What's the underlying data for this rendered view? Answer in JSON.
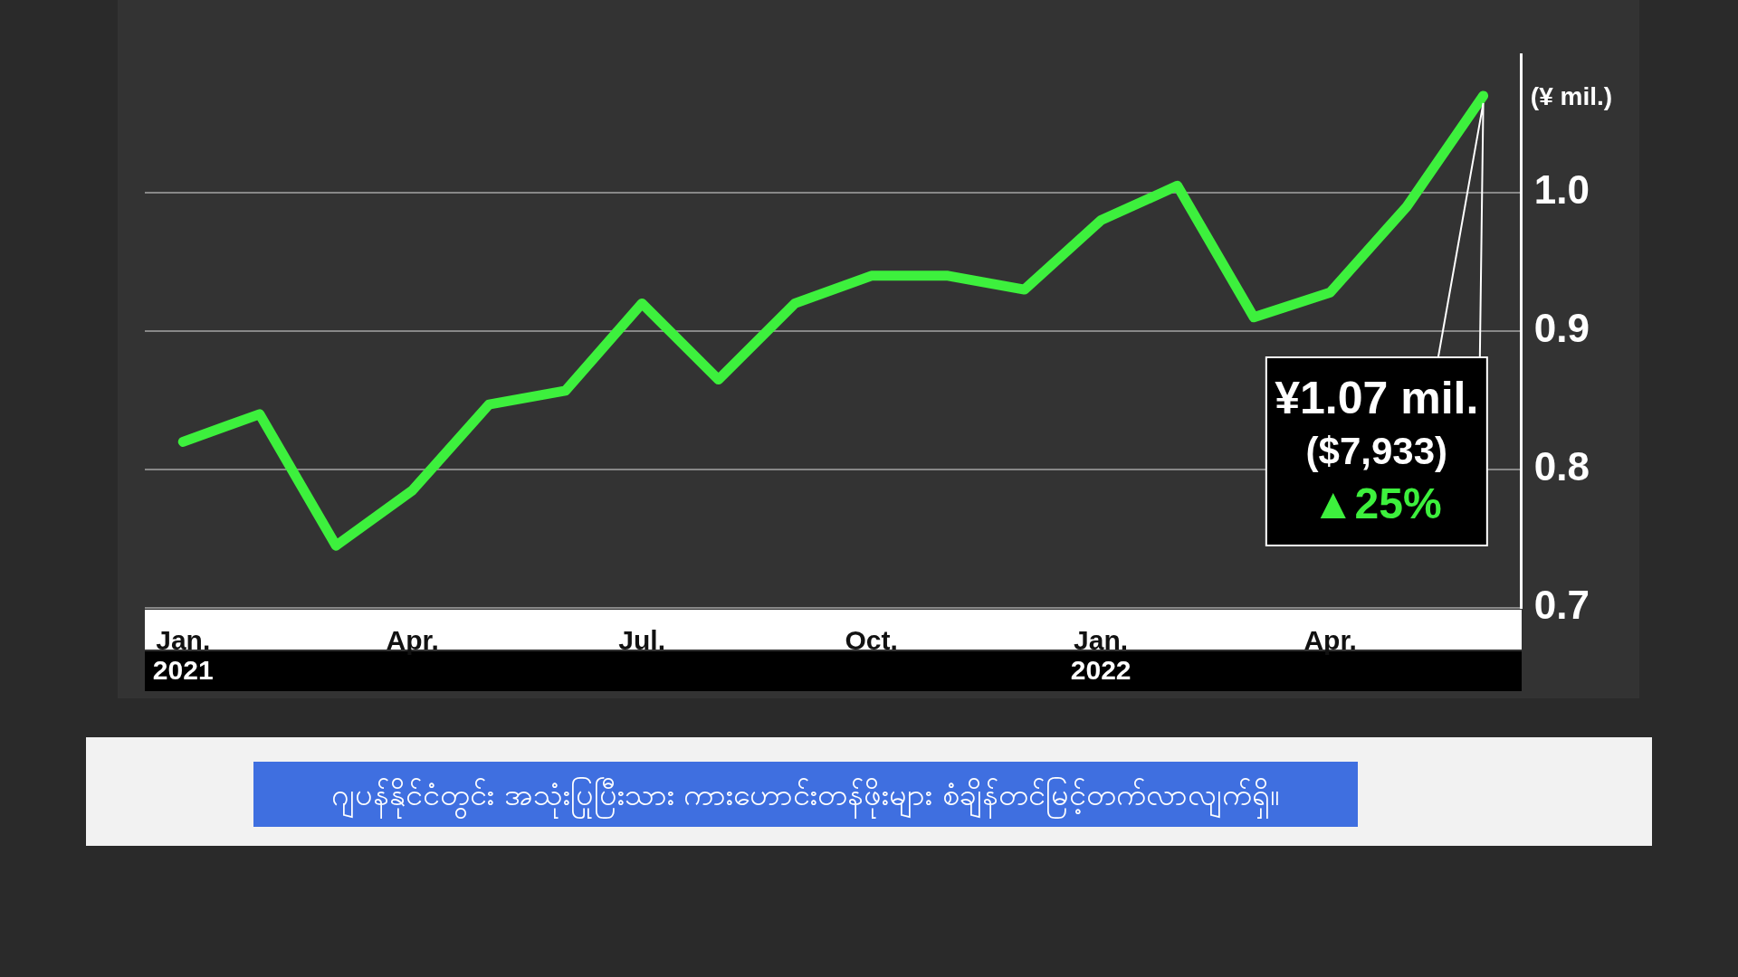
{
  "chart_data": {
    "type": "line",
    "ylabel": "(¥ mil.)",
    "categories": [
      "Jan.",
      null,
      null,
      "Apr.",
      null,
      null,
      "Jul.",
      null,
      null,
      "Oct.",
      null,
      null,
      "Jan.",
      null,
      null,
      "Apr.",
      null,
      null
    ],
    "values": [
      0.82,
      0.84,
      0.745,
      0.785,
      0.847,
      0.857,
      0.92,
      0.865,
      0.92,
      0.94,
      0.94,
      0.93,
      0.98,
      1.005,
      0.91,
      0.928,
      0.99,
      1.07
    ],
    "color": "#3df03d",
    "ylim": [
      0.7,
      1.1
    ],
    "yticks": [
      {
        "value": 0.7,
        "label": "0.7"
      },
      {
        "value": 0.8,
        "label": "0.8"
      },
      {
        "value": 0.9,
        "label": "0.9"
      },
      {
        "value": 1,
        "label": "1.0"
      }
    ],
    "grid": "y",
    "legend": false,
    "annotations": [
      "¥1.07 mil.",
      "($7,933)",
      "▲25%",
      "2021",
      "2022",
      "ဂျပန်နိုင်ငံတွင်း အသုံးပြုပြီးသား ကားဟောင်းတန်ဖိုးများ စံချိန်တင်မြင့်တက်လာလျက်ရှိ။"
    ]
  }
}
